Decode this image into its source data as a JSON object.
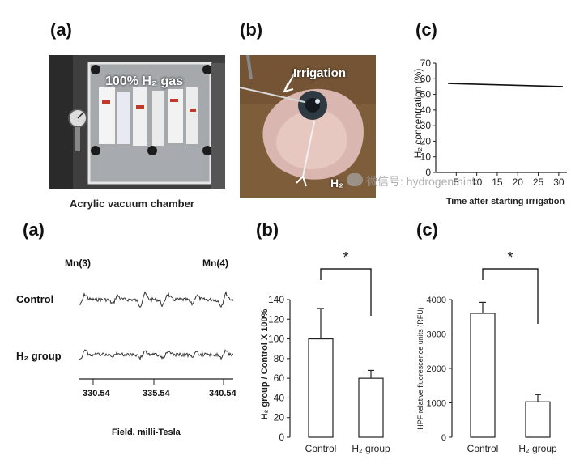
{
  "top": {
    "a": {
      "label": "(a)",
      "photo_text": "100% H₂ gas",
      "caption": "Acrylic vacuum chamber"
    },
    "b": {
      "label": "(b)",
      "irrigation": "Irrigation",
      "h2": "H₂"
    },
    "c": {
      "label": "(c)",
      "chart_title": ""
    },
    "watermark": "微信号: hydrogenthink"
  },
  "bottom": {
    "a": {
      "label": "(a)",
      "peak_left": "Mn(3)",
      "peak_right": "Mn(4)",
      "row_control": "Control",
      "row_h2": "H₂ group",
      "xlabel": "Field, milli-Tesla",
      "ticks": [
        "330.54",
        "335.54",
        "340.54"
      ]
    },
    "b": {
      "label": "(b)",
      "sig": "*"
    },
    "c": {
      "label": "(c)",
      "sig": "*"
    }
  },
  "chart_data": [
    {
      "id": "top-c",
      "type": "line",
      "title": "",
      "xlabel": "Time after starting irrigation",
      "ylabel": "H₂ concentration (%)",
      "xlim": [
        0,
        32
      ],
      "ylim": [
        0,
        70
      ],
      "xticks": [
        5,
        10,
        15,
        20,
        25,
        30
      ],
      "yticks": [
        0,
        10,
        20,
        30,
        40,
        50,
        60,
        70
      ],
      "series": [
        {
          "name": "H₂",
          "x": [
            3,
            31
          ],
          "y": [
            57,
            55
          ]
        }
      ]
    },
    {
      "id": "bottom-b",
      "type": "bar",
      "title": "",
      "xlabel": "",
      "ylabel": "H₂ group / Control X 100%",
      "categories": [
        "Control",
        "H₂ group"
      ],
      "values": [
        100,
        60
      ],
      "errors": [
        31,
        8
      ],
      "ylim": [
        0,
        140
      ],
      "yticks": [
        0,
        20,
        40,
        60,
        80,
        100,
        120,
        140
      ]
    },
    {
      "id": "bottom-c",
      "type": "bar",
      "title": "",
      "xlabel": "",
      "ylabel": "HPF relative fluorescence units (RFU)",
      "categories": [
        "Control",
        "H₂ group"
      ],
      "values": [
        3600,
        1030
      ],
      "errors": [
        320,
        210
      ],
      "ylim": [
        0,
        4000
      ],
      "yticks": [
        0,
        1000,
        2000,
        3000,
        4000
      ]
    }
  ]
}
